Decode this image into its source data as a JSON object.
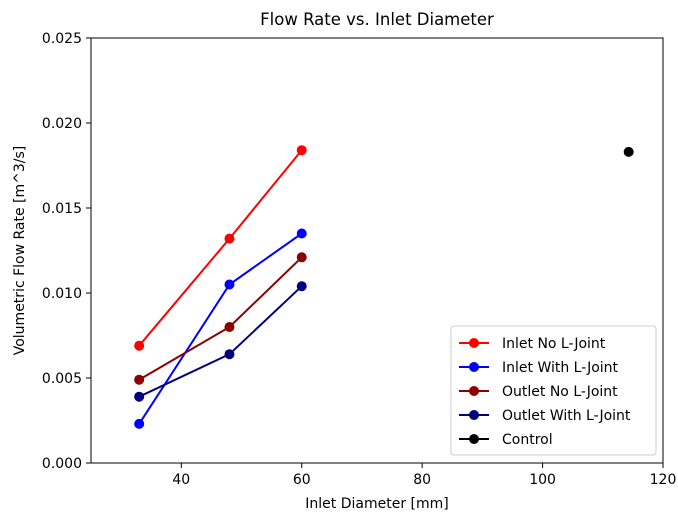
{
  "chart_data": {
    "type": "line",
    "title": "Flow Rate vs. Inlet Diameter",
    "xlabel": "Inlet Diameter [mm]",
    "ylabel": "Volumetric Flow Rate [m^3/s]",
    "xlim": [
      25,
      120
    ],
    "ylim": [
      0,
      0.025
    ],
    "xticks": [
      40,
      60,
      80,
      100,
      120
    ],
    "xtick_labels": [
      "40",
      "60",
      "80",
      "100",
      "120"
    ],
    "yticks": [
      0,
      0.005,
      0.01,
      0.015,
      0.02,
      0.025
    ],
    "ytick_labels": [
      "0.000",
      "0.005",
      "0.010",
      "0.015",
      "0.020",
      "0.025"
    ],
    "grid": false,
    "legend_position": "lower-right",
    "series": [
      {
        "name": "Inlet No L-Joint",
        "color": "#ff0000",
        "x": [
          33,
          48,
          60
        ],
        "y": [
          0.0069,
          0.0132,
          0.0184
        ]
      },
      {
        "name": "Inlet With L-Joint",
        "color": "#0000ff",
        "x": [
          33,
          48,
          60
        ],
        "y": [
          0.0023,
          0.0105,
          0.0135
        ]
      },
      {
        "name": "Outlet No L-Joint",
        "color": "#8b0000",
        "x": [
          33,
          48,
          60
        ],
        "y": [
          0.0049,
          0.008,
          0.0121
        ]
      },
      {
        "name": "Outlet With L-Joint",
        "color": "#000080",
        "x": [
          33,
          48,
          60
        ],
        "y": [
          0.0039,
          0.0064,
          0.0104
        ]
      },
      {
        "name": "Control",
        "color": "#000000",
        "x": [
          114.3
        ],
        "y": [
          0.0183
        ]
      }
    ]
  }
}
